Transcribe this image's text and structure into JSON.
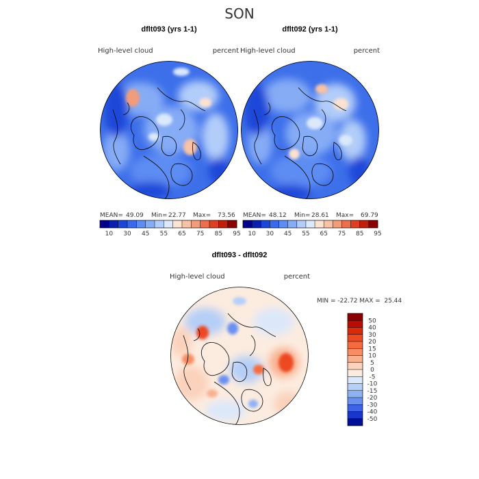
{
  "title": "SON",
  "chart_data": [
    {
      "type": "heatmap",
      "projection": "north polar stereographic",
      "panel_title": "dflt093 (yrs 1-1)",
      "field_label": "High-level cloud",
      "units": "percent",
      "stats": {
        "mean_label": "MEAN=",
        "mean": "49.09",
        "min_label": "Min=",
        "min": "22.77",
        "max_label": "Max=",
        "max": "73.56"
      },
      "colorbar": {
        "orientation": "horizontal",
        "tick_labels": [
          "10",
          "30",
          "45",
          "55",
          "65",
          "75",
          "85",
          "95"
        ],
        "colors": [
          "#00008b",
          "#0a1fb0",
          "#1c46d8",
          "#3a6aec",
          "#5d8cf2",
          "#86acf6",
          "#b2cdf9",
          "#dbe9fb",
          "#fbe2d1",
          "#f8c2a6",
          "#f39c7a",
          "#eb6f4d",
          "#de3f22",
          "#c01f0a",
          "#8b0000"
        ]
      }
    },
    {
      "type": "heatmap",
      "projection": "north polar stereographic",
      "panel_title": "dflt092 (yrs 1-1)",
      "field_label": "High-level cloud",
      "units": "percent",
      "stats": {
        "mean_label": "MEAN=",
        "mean": "48.12",
        "min_label": "Min=",
        "min": "28.61",
        "max_label": "Max=",
        "max": "69.79"
      },
      "colorbar": {
        "orientation": "horizontal",
        "tick_labels": [
          "10",
          "30",
          "45",
          "55",
          "65",
          "75",
          "85",
          "95"
        ],
        "colors": [
          "#00008b",
          "#0a1fb0",
          "#1c46d8",
          "#3a6aec",
          "#5d8cf2",
          "#86acf6",
          "#b2cdf9",
          "#dbe9fb",
          "#fbe2d1",
          "#f8c2a6",
          "#f39c7a",
          "#eb6f4d",
          "#de3f22",
          "#c01f0a",
          "#8b0000"
        ]
      }
    },
    {
      "type": "heatmap",
      "projection": "north polar stereographic",
      "panel_title": "dflt093 - dflt092",
      "field_label": "High-level cloud",
      "units": "percent",
      "range_text": "MIN = -22.72 MAX =  25.44",
      "min": -22.72,
      "max": 25.44,
      "colorbar": {
        "orientation": "vertical",
        "tick_labels": [
          "50",
          "40",
          "30",
          "20",
          "15",
          "10",
          "5",
          "0",
          "-5",
          "-10",
          "-15",
          "-20",
          "-30",
          "-40",
          "-50"
        ],
        "colors": [
          "#8b0000",
          "#b80d00",
          "#d82b0c",
          "#ec4a22",
          "#f56a3e",
          "#f88c64",
          "#f9b08f",
          "#fbd2bb",
          "#fcece0",
          "#dce8fa",
          "#b6cff7",
          "#8eb1f4",
          "#6a91f0",
          "#3f63e6",
          "#1a36cc",
          "#000f98"
        ]
      }
    }
  ]
}
